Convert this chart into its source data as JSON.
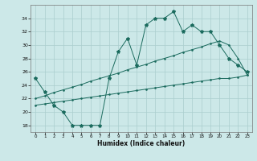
{
  "xlabel": "Humidex (Indice chaleur)",
  "line_color": "#1b6b5e",
  "bg_color": "#cce8e8",
  "grid_color": "#aacece",
  "x_data": [
    0,
    1,
    2,
    3,
    4,
    5,
    6,
    7,
    8,
    9,
    10,
    11,
    12,
    13,
    14,
    15,
    16,
    17,
    18,
    19,
    20,
    21,
    22,
    23
  ],
  "y_line1": [
    25,
    23,
    21,
    20,
    18,
    18,
    18,
    18,
    25,
    29,
    31,
    27,
    33,
    34,
    34,
    35,
    32,
    33,
    32,
    32,
    30,
    28,
    27,
    26
  ],
  "y_line2": [
    22,
    22.4,
    22.9,
    23.3,
    23.7,
    24.1,
    24.6,
    25.0,
    25.4,
    25.8,
    26.3,
    26.7,
    27.1,
    27.6,
    28.0,
    28.4,
    28.9,
    29.3,
    29.7,
    30.2,
    30.6,
    30.0,
    28.0,
    25.5
  ],
  "y_line3": [
    21,
    21.2,
    21.4,
    21.6,
    21.8,
    22.0,
    22.2,
    22.4,
    22.6,
    22.8,
    23.0,
    23.2,
    23.4,
    23.6,
    23.8,
    24.0,
    24.2,
    24.4,
    24.6,
    24.8,
    25.0,
    25.0,
    25.2,
    25.5
  ],
  "xlim": [
    -0.5,
    23.5
  ],
  "ylim": [
    17,
    36
  ],
  "yticks": [
    18,
    20,
    22,
    24,
    26,
    28,
    30,
    32,
    34
  ],
  "xticks": [
    0,
    1,
    2,
    3,
    4,
    5,
    6,
    7,
    8,
    9,
    10,
    11,
    12,
    13,
    14,
    15,
    16,
    17,
    18,
    19,
    20,
    21,
    22,
    23
  ]
}
